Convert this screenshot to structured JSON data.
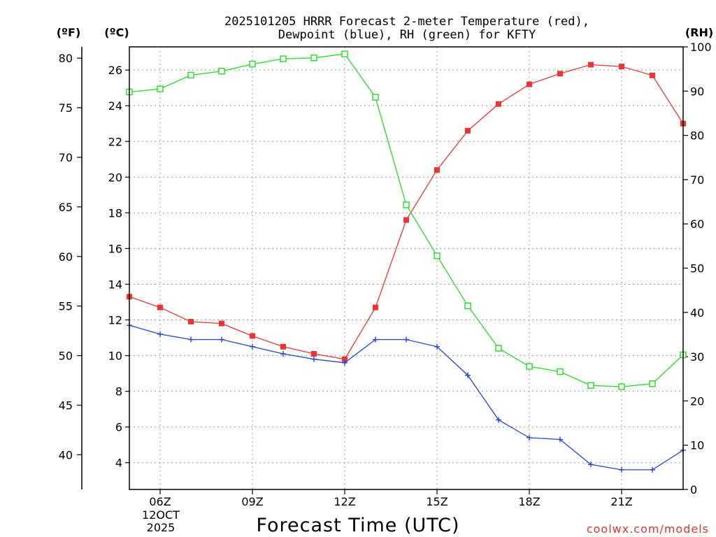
{
  "chart_data": {
    "type": "line",
    "title_line1": "2025101205 HRRR Forecast 2-meter Temperature (red),",
    "title_line2": "Dewpoint (blue), RH (green) for KFTY",
    "xlabel": "Forecast Time (UTC)",
    "left_outer_unit": "(ºF)",
    "left_inner_unit": "(ºC)",
    "right_unit": "(RH)",
    "credit": "coolwx.com/models",
    "x_hours": [
      5,
      6,
      7,
      8,
      9,
      10,
      11,
      12,
      13,
      14,
      15,
      16,
      17,
      18,
      19,
      20,
      21,
      22,
      23
    ],
    "x_ticks": [
      {
        "hour": 6,
        "label": "06Z",
        "date_line1": "12OCT",
        "date_line2": "2025"
      },
      {
        "hour": 9,
        "label": "09Z"
      },
      {
        "hour": 12,
        "label": "12Z"
      },
      {
        "hour": 15,
        "label": "15Z"
      },
      {
        "hour": 18,
        "label": "18Z"
      },
      {
        "hour": 21,
        "label": "21Z"
      }
    ],
    "y_celsius_range": [
      2.5,
      27.3
    ],
    "y_celsius_ticks": [
      4,
      6,
      8,
      10,
      12,
      14,
      16,
      18,
      20,
      22,
      24,
      26
    ],
    "y_fahrenheit_ticks": [
      40,
      45,
      50,
      55,
      60,
      65,
      70,
      75,
      80
    ],
    "y_rh_range": [
      0,
      100
    ],
    "y_rh_ticks": [
      0,
      10,
      20,
      30,
      40,
      50,
      60,
      70,
      80,
      90,
      100
    ],
    "grid": true,
    "series": [
      {
        "name": "Temperature",
        "axis": "celsius",
        "color": "#ee3333",
        "marker": "filled-square",
        "values": [
          13.3,
          12.7,
          11.9,
          11.8,
          11.1,
          10.5,
          10.1,
          9.8,
          12.7,
          17.6,
          20.4,
          22.6,
          24.1,
          25.2,
          25.8,
          26.3,
          26.2,
          25.7,
          23.0
        ]
      },
      {
        "name": "Dewpoint",
        "axis": "celsius",
        "color": "#2244dd",
        "marker": "plus",
        "values": [
          11.7,
          11.2,
          10.9,
          10.9,
          10.5,
          10.1,
          9.8,
          9.6,
          10.9,
          10.9,
          10.5,
          8.9,
          6.4,
          5.4,
          5.3,
          3.9,
          3.6,
          3.6,
          4.7
        ]
      },
      {
        "name": "RH",
        "axis": "rh",
        "color": "#22dd22",
        "marker": "open-square",
        "values": [
          89.8,
          90.5,
          93.6,
          94.5,
          96.1,
          97.3,
          97.5,
          98.4,
          88.6,
          64.3,
          52.8,
          41.5,
          31.9,
          27.8,
          26.6,
          23.5,
          23.2,
          23.9,
          30.4
        ]
      }
    ]
  }
}
